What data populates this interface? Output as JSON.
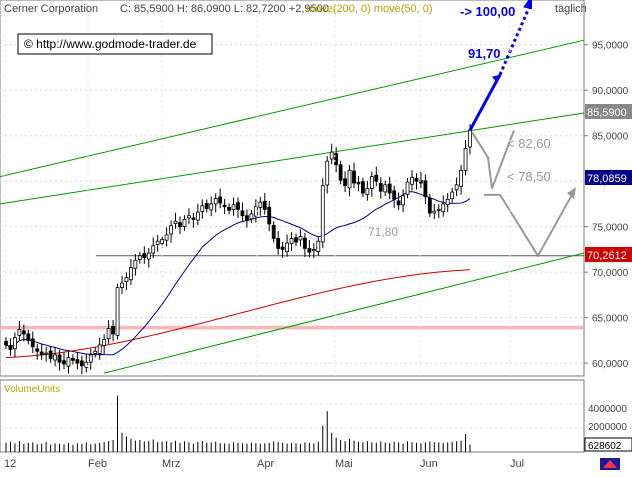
{
  "header": {
    "symbol": "Cerner Corporation",
    "quote": "C: 85,5900  H: 86,0900  L: 82,7200  +2,9500",
    "ma_label": "move(200, 0)  move(50, 0)",
    "timeframe": "täglich"
  },
  "watermark": "© http://www.godmode-trader.de",
  "colors": {
    "candle": "#000000",
    "ma200": "#cc0000",
    "ma50": "#000088",
    "trend": "#009900",
    "support_zone": "#f4a0a0",
    "projection_blue": "#0000ee",
    "projection_gray": "#999999",
    "label_ma200_bg": "#cc0000",
    "label_ma50_bg": "#000088",
    "label_price_bg": "#888888"
  },
  "annotations": {
    "target_100": "-> 100,00",
    "target_91": "91,70",
    "level_82": "< 82,60",
    "level_78": "< 78,50",
    "level_71": "71,80"
  },
  "right_labels": {
    "price": "85,5900",
    "ma50": "78,0859",
    "ma200": "70,2612",
    "volume_last": "628602"
  },
  "volume_panel": {
    "title": "VolumeUnits",
    "ticks": [
      "4000000",
      "2000000"
    ]
  },
  "chart_data": {
    "type": "candlestick",
    "x_labels": [
      "12",
      "Feb",
      "Mrz",
      "Apr",
      "Mai",
      "Jun",
      "Jul"
    ],
    "y_ticks": [
      95,
      90,
      85,
      80,
      75,
      70,
      65,
      60
    ],
    "y_tick_labels": [
      "95,0000",
      "90,0000",
      "85,0000",
      "80,0000",
      "75,0000",
      "70,0000",
      "65,0000",
      "60,0000"
    ],
    "ylim": [
      58.8,
      99.7
    ],
    "closes": [
      62.0,
      61.5,
      62.8,
      63.7,
      63.2,
      62.5,
      61.8,
      61.3,
      60.9,
      61.1,
      60.5,
      60.9,
      60.1,
      59.9,
      60.6,
      60.3,
      60.0,
      59.7,
      60.1,
      60.9,
      61.3,
      62.0,
      62.6,
      63.8,
      63.2,
      68.3,
      68.8,
      69.4,
      70.5,
      71.3,
      71.8,
      71.6,
      72.1,
      72.9,
      73.4,
      73.6,
      74.1,
      75.1,
      75.6,
      75.0,
      75.8,
      76.2,
      75.8,
      76.6,
      77.3,
      77.0,
      77.5,
      78.1,
      77.6,
      77.2,
      76.8,
      77.4,
      76.9,
      76.2,
      75.7,
      76.4,
      77.2,
      77.7,
      76.9,
      75.3,
      73.7,
      72.6,
      72.5,
      73.2,
      73.7,
      73.3,
      73.9,
      72.6,
      72.2,
      72.5,
      73.4,
      79.5,
      82.2,
      83.2,
      81.8,
      80.1,
      79.5,
      81.2,
      79.8,
      79.7,
      78.7,
      79.2,
      80.5,
      80.0,
      78.9,
      79.6,
      78.7,
      78.0,
      77.4,
      78.4,
      79.9,
      80.4,
      80.0,
      79.8,
      78.3,
      76.5,
      76.7,
      76.9,
      77.5,
      78.0,
      78.8,
      79.6,
      81.2,
      83.6,
      85.59
    ],
    "ma50_end": 78.0859,
    "ma200_end": 70.2612,
    "resistance_level": 71.8,
    "projection_targets": [
      91.7,
      100.0,
      82.6,
      78.5
    ],
    "volume": [
      780000,
      850000,
      720000,
      900000,
      680000,
      760000,
      800000,
      650000,
      700000,
      830000,
      620000,
      710000,
      690000,
      640000,
      750000,
      600000,
      720000,
      680000,
      800000,
      650000,
      700000,
      760000,
      820000,
      900000,
      1000000,
      4700000,
      1600000,
      1300000,
      1100000,
      950000,
      1000000,
      880000,
      920000,
      1050000,
      830000,
      870000,
      900000,
      800000,
      940000,
      760000,
      890000,
      820000,
      700000,
      850000,
      930000,
      780000,
      800000,
      860000,
      740000,
      720000,
      690000,
      810000,
      760000,
      730000,
      700000,
      780000,
      740000,
      690000,
      720000,
      760000,
      880000,
      820000,
      790000,
      700000,
      760000,
      720000,
      680000,
      800000,
      760000,
      720000,
      860000,
      2200000,
      3400000,
      1600000,
      1200000,
      1000000,
      900000,
      1100000,
      950000,
      850000,
      820000,
      900000,
      800000,
      760000,
      880000,
      780000,
      740000,
      860000,
      800000,
      700000,
      900000,
      820000,
      760000,
      730000,
      800000,
      880000,
      820000,
      790000,
      760000,
      800000,
      850000,
      900000,
      950000,
      1500000,
      628602
    ]
  }
}
